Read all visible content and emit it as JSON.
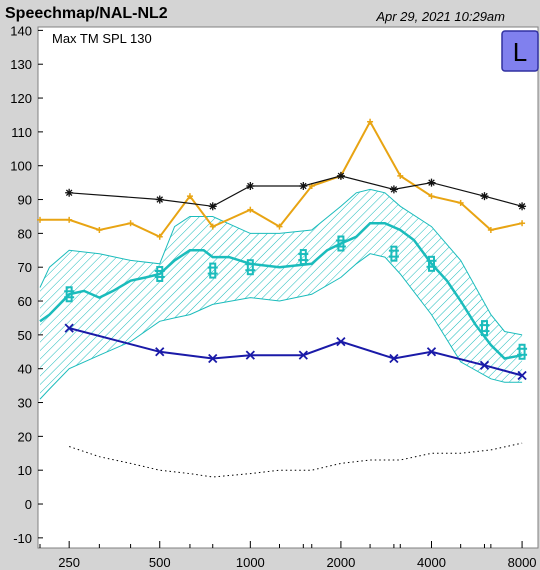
{
  "header": {
    "title": "Speechmap/NAL-NL2",
    "date": "Apr 29, 2021 10:29am"
  },
  "annotation": "Max TM SPL 130",
  "ear_badge": "L",
  "colors": {
    "panel": "#d4d4d4",
    "plot_bg": "#ffffff",
    "ucl": "#111111",
    "target": "#e8a413",
    "speech": "#1bbcbc",
    "threshold": "#1a1aa8",
    "badge_fill": "#8080ee"
  },
  "chart_data": {
    "type": "line",
    "x_scale": "log",
    "xlim": [
      200,
      8500
    ],
    "ylim": [
      -13,
      141
    ],
    "x_ticks": [
      250,
      500,
      1000,
      2000,
      4000,
      8000
    ],
    "x_tick_labels": [
      "250",
      "500",
      "1000",
      "2000",
      "4000",
      "8000"
    ],
    "y_ticks": [
      -10,
      0,
      10,
      20,
      30,
      40,
      50,
      60,
      70,
      80,
      90,
      100,
      110,
      120,
      130,
      140
    ],
    "y_tick_labels": [
      "-10",
      "0",
      "10",
      "20",
      "30",
      "40",
      "50",
      "60",
      "70",
      "80",
      "90",
      "100",
      "110",
      "120",
      "130",
      "140"
    ],
    "grid": false,
    "series": [
      {
        "role": "ucl",
        "style": "line-asterisk",
        "x": [
          250,
          500,
          750,
          1000,
          1500,
          2000,
          3000,
          4000,
          6000,
          8000
        ],
        "y": [
          92,
          90,
          88,
          94,
          94,
          97,
          93,
          95,
          91,
          88
        ]
      },
      {
        "role": "target",
        "style": "line-plus",
        "x": [
          200,
          250,
          315,
          400,
          500,
          630,
          750,
          1000,
          1250,
          1600,
          2000,
          2500,
          3150,
          4000,
          5000,
          6300,
          8000
        ],
        "y": [
          84,
          84,
          81,
          83,
          79,
          91,
          82,
          87,
          82,
          94,
          97,
          113,
          97,
          91,
          89,
          81,
          83
        ]
      },
      {
        "role": "speech-band",
        "style": "hatched-band",
        "x": [
          200,
          215,
          250,
          315,
          400,
          500,
          560,
          630,
          750,
          1000,
          1250,
          1600,
          2000,
          2250,
          2500,
          2800,
          3150,
          4000,
          5000,
          6300,
          7000,
          8000
        ],
        "upper": [
          64,
          70,
          75,
          74,
          72,
          71,
          82,
          85,
          85,
          80,
          80,
          81,
          88,
          92,
          93,
          92,
          88,
          82,
          72,
          56,
          51,
          50
        ],
        "lower": [
          31,
          34,
          40,
          44,
          48,
          54,
          55,
          56,
          59,
          61,
          60,
          62,
          67,
          71,
          74,
          73,
          68,
          56,
          42,
          37,
          36,
          36
        ]
      },
      {
        "role": "speech-ltass",
        "style": "thick-line",
        "x": [
          200,
          215,
          250,
          280,
          315,
          350,
          400,
          450,
          500,
          560,
          630,
          700,
          750,
          850,
          1000,
          1250,
          1600,
          1800,
          2000,
          2250,
          2500,
          2800,
          3150,
          3500,
          4000,
          4500,
          5000,
          5600,
          6300,
          7000,
          8000
        ],
        "y": [
          54,
          56,
          62,
          63,
          61,
          63,
          66,
          67,
          68,
          72,
          75,
          75,
          73,
          73,
          71,
          70,
          71,
          75,
          77,
          79,
          83,
          83,
          81,
          78,
          71,
          66,
          60,
          53,
          47,
          43,
          44
        ]
      },
      {
        "role": "speech-markers",
        "style": "crossed-box",
        "x": [
          250,
          500,
          750,
          1000,
          1500,
          2000,
          3000,
          4000,
          6000,
          8000
        ],
        "y": [
          62,
          68,
          69,
          70,
          73,
          77,
          74,
          71,
          52,
          45
        ]
      },
      {
        "role": "threshold",
        "style": "line-x",
        "x": [
          250,
          500,
          750,
          1000,
          1500,
          2000,
          3000,
          4000,
          6000,
          8000
        ],
        "y": [
          52,
          45,
          43,
          44,
          44,
          48,
          43,
          45,
          41,
          38
        ]
      },
      {
        "role": "noise-floor",
        "style": "dotted",
        "x": [
          250,
          315,
          400,
          500,
          630,
          750,
          1000,
          1250,
          1600,
          2000,
          2500,
          3150,
          4000,
          5000,
          6300,
          8000
        ],
        "y": [
          17,
          14,
          12,
          10,
          9,
          8,
          9,
          10,
          10,
          12,
          13,
          13,
          15,
          15,
          16,
          18
        ]
      }
    ]
  }
}
